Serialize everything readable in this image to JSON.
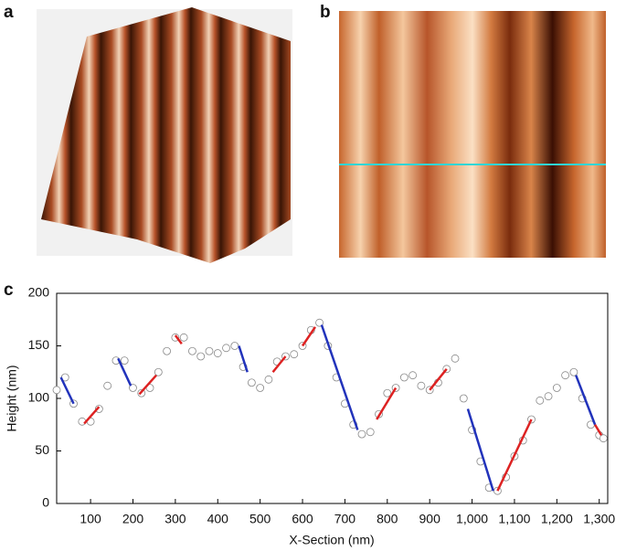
{
  "panels": {
    "a": "a",
    "b": "b"
  },
  "chart_data": {
    "type": "scatter",
    "panel_label": "c",
    "x_label": "X-Section (nm)",
    "y_label": "Height (nm)",
    "xlim": [
      20,
      1320
    ],
    "ylim": [
      0,
      200
    ],
    "xticks": [
      100,
      200,
      300,
      400,
      500,
      600,
      700,
      800,
      900,
      {
        "value": 1000,
        "label": "1,000"
      },
      {
        "value": 1100,
        "label": "1,100"
      },
      {
        "value": 1200,
        "label": "1,200"
      },
      {
        "value": 1300,
        "label": "1,300"
      }
    ],
    "yticks": [
      0,
      50,
      100,
      150,
      200
    ],
    "marker_color": "#888888",
    "x": [
      20,
      40,
      60,
      80,
      100,
      120,
      140,
      160,
      180,
      200,
      220,
      240,
      260,
      280,
      300,
      320,
      340,
      360,
      380,
      400,
      420,
      440,
      460,
      480,
      500,
      520,
      540,
      560,
      580,
      600,
      620,
      640,
      660,
      680,
      700,
      720,
      740,
      760,
      780,
      800,
      820,
      840,
      860,
      880,
      900,
      920,
      940,
      960,
      980,
      1000,
      1020,
      1040,
      1060,
      1080,
      1100,
      1120,
      1140,
      1160,
      1180,
      1200,
      1220,
      1240,
      1260,
      1280,
      1300,
      1310
    ],
    "y": [
      108,
      120,
      95,
      78,
      78,
      90,
      112,
      136,
      136,
      110,
      105,
      110,
      125,
      145,
      158,
      158,
      145,
      140,
      145,
      143,
      148,
      150,
      130,
      115,
      110,
      118,
      135,
      140,
      142,
      150,
      165,
      172,
      150,
      120,
      95,
      75,
      66,
      68,
      85,
      105,
      110,
      120,
      122,
      112,
      108,
      115,
      128,
      138,
      100,
      70,
      40,
      15,
      12,
      25,
      45,
      60,
      80,
      98,
      102,
      110,
      122,
      125,
      100,
      75,
      65,
      62
    ],
    "segments": [
      {
        "color": "#2233bb",
        "x": [
          30,
          60
        ],
        "y": [
          120,
          95
        ]
      },
      {
        "color": "#dd2222",
        "x": [
          85,
          120
        ],
        "y": [
          76,
          92
        ]
      },
      {
        "color": "#2233bb",
        "x": [
          165,
          195
        ],
        "y": [
          138,
          112
        ]
      },
      {
        "color": "#dd2222",
        "x": [
          215,
          255
        ],
        "y": [
          104,
          122
        ]
      },
      {
        "color": "#dd2222",
        "x": [
          300,
          315
        ],
        "y": [
          160,
          152
        ]
      },
      {
        "color": "#2233bb",
        "x": [
          450,
          470
        ],
        "y": [
          150,
          125
        ]
      },
      {
        "color": "#dd2222",
        "x": [
          530,
          560
        ],
        "y": [
          125,
          140
        ]
      },
      {
        "color": "#dd2222",
        "x": [
          600,
          630
        ],
        "y": [
          150,
          168
        ]
      },
      {
        "color": "#2233bb",
        "x": [
          645,
          730
        ],
        "y": [
          170,
          70
        ]
      },
      {
        "color": "#dd2222",
        "x": [
          775,
          820
        ],
        "y": [
          80,
          110
        ]
      },
      {
        "color": "#dd2222",
        "x": [
          900,
          940
        ],
        "y": [
          108,
          128
        ]
      },
      {
        "color": "#2233bb",
        "x": [
          990,
          1050
        ],
        "y": [
          90,
          12
        ]
      },
      {
        "color": "#dd2222",
        "x": [
          1060,
          1140
        ],
        "y": [
          12,
          80
        ]
      },
      {
        "color": "#2233bb",
        "x": [
          1245,
          1290
        ],
        "y": [
          122,
          75
        ]
      },
      {
        "color": "#dd2222",
        "x": [
          1290,
          1305
        ],
        "y": [
          75,
          65
        ]
      }
    ]
  }
}
